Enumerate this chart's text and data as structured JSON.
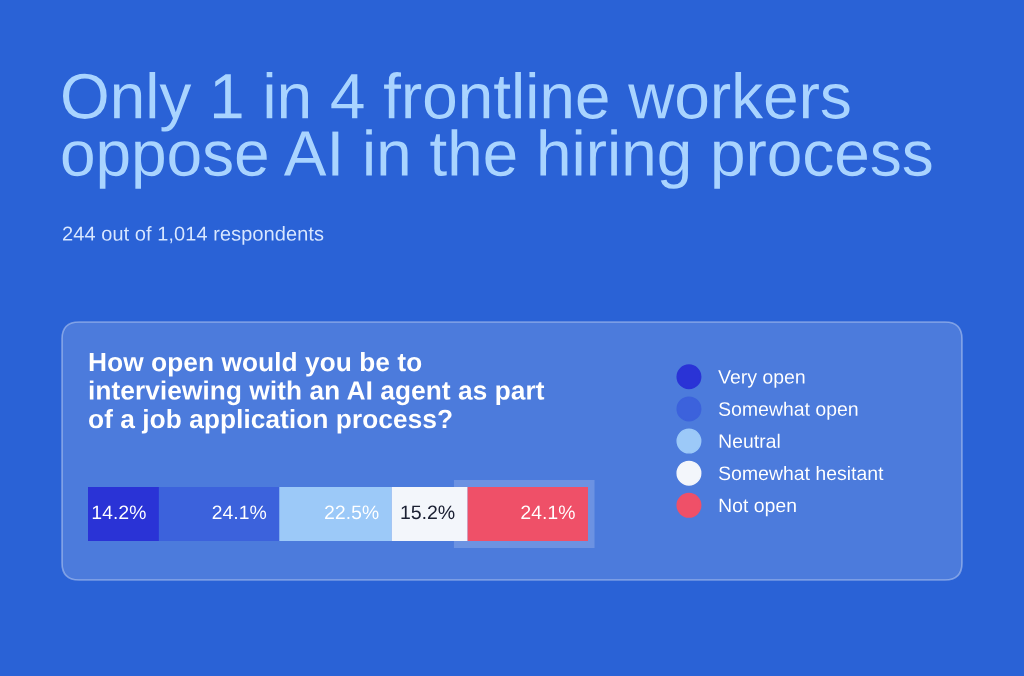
{
  "chart_data": {
    "type": "bar",
    "orientation": "horizontal",
    "stacked": true,
    "title": "Only 1 in 4 frontline workers oppose AI in the hiring process",
    "subtitle": "244 out of 1,014 respondents",
    "annotations": [
      "How open would you be to interviewing with an AI agent as part of a job application process?"
    ],
    "categories": [
      null
    ],
    "series": [
      {
        "name": "Very open",
        "color": "#2a33d6",
        "values": [
          14.2
        ],
        "value_labels": [
          "14.2%"
        ]
      },
      {
        "name": "Somewhat open",
        "color": "#3c62dc",
        "values": [
          24.1
        ],
        "value_labels": [
          "24.1%"
        ]
      },
      {
        "name": "Neutral",
        "color": "#9cc9f8",
        "values": [
          22.5
        ],
        "value_labels": [
          "22.5%"
        ]
      },
      {
        "name": "Somewhat hesitant",
        "color": "#f3f6fb",
        "values": [
          15.2
        ],
        "value_labels": [
          "15.2%"
        ]
      },
      {
        "name": "Not open",
        "color": "#ef5068",
        "values": [
          24.1
        ],
        "value_labels": [
          "24.1%"
        ]
      }
    ],
    "bands": [
      {
        "axis": "x",
        "from": 73.4,
        "to": 101.4,
        "color": "#ffffff"
      }
    ],
    "legend": "right",
    "tick_labels": false
  }
}
